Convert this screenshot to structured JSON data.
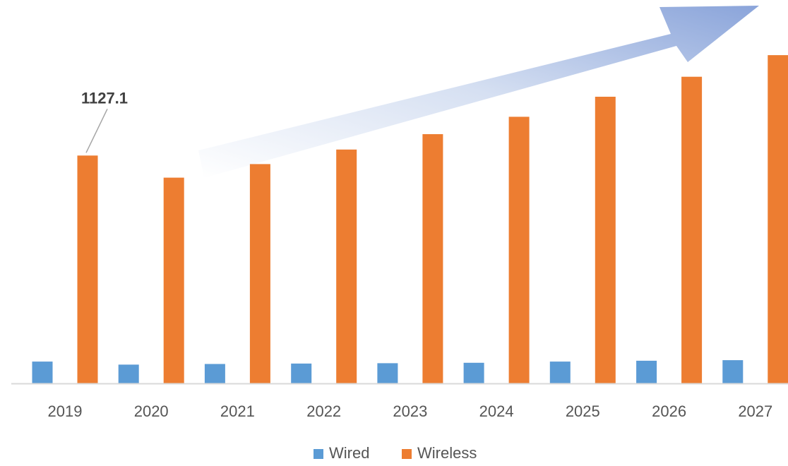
{
  "chart_data": {
    "type": "bar",
    "title": "",
    "xlabel": "",
    "ylabel": "",
    "categories": [
      "2019",
      "2020",
      "2021",
      "2022",
      "2023",
      "2024",
      "2025",
      "2026",
      "2027"
    ],
    "series": [
      {
        "name": "Wired",
        "color": "#5B9BD5",
        "values": [
          108,
          93,
          96,
          98,
          100,
          102,
          108,
          112,
          115
        ]
      },
      {
        "name": "Wireless",
        "color": "#ED7D31",
        "values": [
          1127.1,
          1018,
          1085,
          1157,
          1233,
          1319,
          1418,
          1517,
          1624
        ]
      }
    ],
    "annotations": [
      {
        "series": "Wireless",
        "category": "2019",
        "text": "1127.1"
      }
    ],
    "ylim": [
      0,
      1750
    ],
    "grid": false,
    "legend": {
      "position": "bottom",
      "entries": [
        "Wired",
        "Wireless"
      ]
    },
    "trend_arrow": {
      "direction": "up-right",
      "color": "#8FA8DC"
    }
  }
}
